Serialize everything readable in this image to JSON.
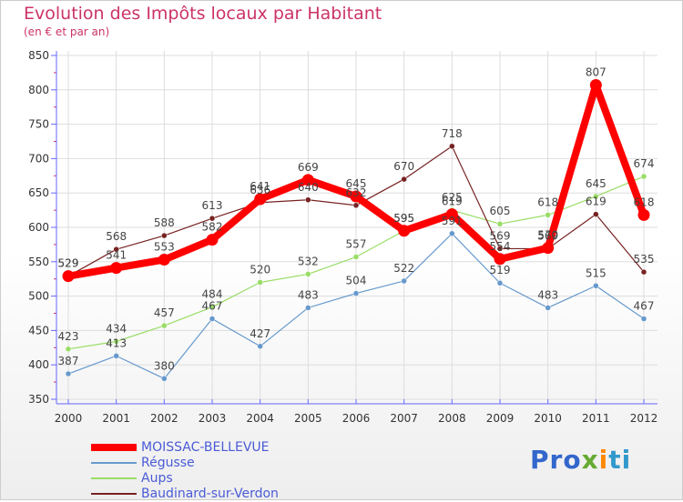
{
  "header": {
    "title": "Evolution des Impôts locaux par Habitant",
    "subtitle": "(en € et par an)"
  },
  "logo": {
    "part1": "Pro",
    "part2": "x",
    "part3": "i",
    "part4": "ti"
  },
  "colors": {
    "title": "#cc3366",
    "moissac": "#ff0000",
    "regusse": "#6699cc",
    "aups": "#99dd66",
    "baudinard": "#772222",
    "axis": "#6666ff",
    "grid": "#dddddd"
  },
  "chart_data": {
    "type": "line",
    "title": "Evolution des Impôts locaux par Habitant",
    "subtitle": "(en € et par an)",
    "x": [
      "2000",
      "2001",
      "2002",
      "2003",
      "2004",
      "2005",
      "2006",
      "2007",
      "2008",
      "2009",
      "2010",
      "2011",
      "2012"
    ],
    "yticks": [
      350,
      400,
      450,
      500,
      550,
      600,
      650,
      700,
      750,
      800,
      850
    ],
    "ylim": [
      350,
      850
    ],
    "grid": true,
    "legend_position": "bottom-left",
    "series": [
      {
        "name": "MOISSAC-BELLEVUE",
        "color": "#ff0000",
        "values": [
          529,
          541,
          553,
          582,
          641,
          669,
          645,
          595,
          619,
          554,
          570,
          807,
          618
        ],
        "labels": [
          "529",
          "541",
          "553",
          "582",
          "641",
          "669",
          "645",
          "595",
          "619",
          "554",
          "570",
          "807",
          "618"
        ]
      },
      {
        "name": "Régusse",
        "color": "#6699cc",
        "values": [
          387,
          413,
          380,
          467,
          427,
          483,
          504,
          522,
          591,
          519,
          483,
          515,
          467
        ],
        "labels": [
          "387",
          "413",
          "380",
          "467",
          "427",
          "483",
          "504",
          "522",
          "591",
          "519",
          "483",
          "515",
          "467"
        ]
      },
      {
        "name": "Aups",
        "color": "#99dd66",
        "values": [
          423,
          434,
          457,
          484,
          520,
          532,
          557,
          595,
          625,
          605,
          618,
          645,
          674
        ],
        "labels": [
          "423",
          "434",
          "457",
          "484",
          "520",
          "532",
          "557",
          "595",
          "625",
          "605",
          "618",
          "645",
          "674"
        ]
      },
      {
        "name": "Baudinard-sur-Verdon",
        "color": "#772222",
        "values": [
          529,
          568,
          588,
          613,
          636,
          640,
          632,
          670,
          718,
          569,
          569,
          619,
          535
        ],
        "labels": [
          "529",
          "568",
          "588",
          "613",
          "636",
          "640",
          "632",
          "670",
          "718",
          "569",
          "569",
          "619",
          "535"
        ]
      }
    ]
  }
}
